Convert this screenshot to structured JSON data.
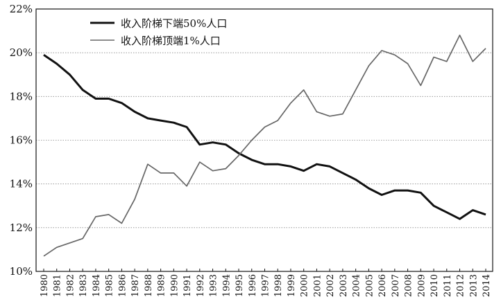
{
  "chart_data": {
    "type": "line",
    "x": [
      1980,
      1981,
      1982,
      1983,
      1984,
      1985,
      1986,
      1987,
      1988,
      1989,
      1990,
      1991,
      1992,
      1993,
      1994,
      1995,
      1996,
      1997,
      1998,
      1999,
      2000,
      2001,
      2002,
      2003,
      2004,
      2005,
      2006,
      2007,
      2008,
      2009,
      2010,
      2011,
      2012,
      2013,
      2014
    ],
    "x_tick_labels": [
      "1980",
      "1981",
      "1982",
      "1983",
      "1984",
      "1985",
      "1986",
      "1987",
      "1988",
      "1989",
      "1990",
      "1991",
      "1992",
      "1993",
      "1994",
      "1995",
      "1996",
      "1997",
      "1998",
      "1999",
      "2000",
      "2001",
      "2002",
      "2003",
      "2004",
      "2005",
      "2006",
      "2007",
      "2008",
      "2009",
      "2010",
      "2011",
      "2012",
      "2013",
      "2014"
    ],
    "y_tick_labels": [
      "10%",
      "12%",
      "14%",
      "16%",
      "18%",
      "20%",
      "22%"
    ],
    "y_ticks": [
      10,
      12,
      14,
      16,
      18,
      20,
      22
    ],
    "ylim": [
      10,
      22
    ],
    "grid": "horizontal-dotted",
    "legend_placement": "top-left",
    "series": [
      {
        "name": "收入阶梯下端50%人口",
        "color": "#111111",
        "style": "thick",
        "values": [
          19.9,
          19.5,
          19.0,
          18.3,
          17.9,
          17.9,
          17.7,
          17.3,
          17.0,
          16.9,
          16.8,
          16.6,
          15.8,
          15.9,
          15.8,
          15.4,
          15.1,
          14.9,
          14.9,
          14.8,
          14.6,
          14.9,
          14.8,
          14.5,
          14.2,
          13.8,
          13.5,
          13.7,
          13.7,
          13.6,
          13.0,
          12.7,
          12.4,
          12.8,
          12.6
        ]
      },
      {
        "name": "收入阶梯顶端1%人口",
        "color": "#666666",
        "style": "thin",
        "values": [
          10.7,
          11.1,
          11.3,
          11.5,
          12.5,
          12.6,
          12.2,
          13.3,
          14.9,
          14.5,
          14.5,
          13.9,
          15.0,
          14.6,
          14.7,
          15.3,
          16.0,
          16.6,
          16.9,
          17.7,
          18.3,
          17.3,
          17.1,
          17.2,
          18.3,
          19.4,
          20.1,
          19.9,
          19.5,
          18.5,
          19.8,
          19.6,
          20.8,
          19.6,
          20.2
        ]
      }
    ]
  }
}
